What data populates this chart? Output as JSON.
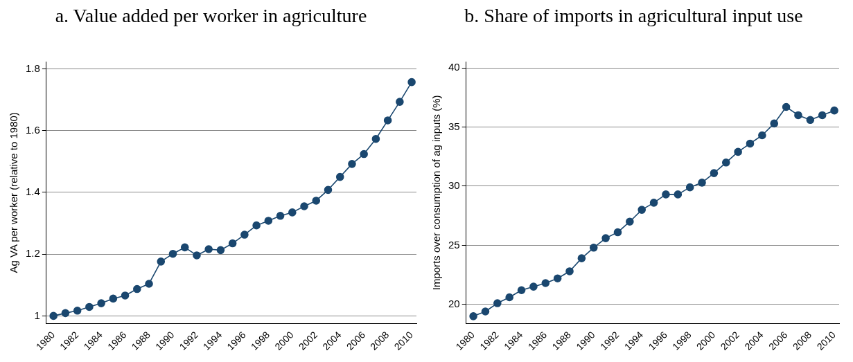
{
  "chart_data": [
    {
      "type": "line",
      "title": "a. Value added per worker in agriculture",
      "ylabel": "Ag VA per worker (relative to 1980)",
      "x": [
        1980,
        1981,
        1982,
        1983,
        1984,
        1985,
        1986,
        1987,
        1988,
        1989,
        1990,
        1991,
        1992,
        1993,
        1994,
        1995,
        1996,
        1997,
        1998,
        1999,
        2000,
        2001,
        2002,
        2003,
        2004,
        2005,
        2006,
        2007,
        2008,
        2009,
        2010
      ],
      "series": [
        {
          "color": "#1a476f",
          "values": [
            1.0,
            1.009,
            1.017,
            1.029,
            1.041,
            1.056,
            1.066,
            1.087,
            1.104,
            1.176,
            1.201,
            1.222,
            1.196,
            1.216,
            1.213,
            1.235,
            1.263,
            1.293,
            1.308,
            1.324,
            1.335,
            1.355,
            1.373,
            1.408,
            1.45,
            1.492,
            1.524,
            1.573,
            1.633,
            1.693,
            1.757
          ]
        }
      ],
      "xlim": [
        1979.4,
        2010.4
      ],
      "xticks": [
        1980,
        1982,
        1984,
        1986,
        1988,
        1990,
        1992,
        1994,
        1996,
        1998,
        2000,
        2002,
        2004,
        2006,
        2008,
        2010
      ],
      "ylim": [
        0.976,
        1.822
      ],
      "yticks": [
        1,
        1.2,
        1.4,
        1.6,
        1.8
      ],
      "grid": "y",
      "marker": "circle",
      "line_style": "solid",
      "legend": false
    },
    {
      "type": "line",
      "title": "b. Share of imports in agricultural input use",
      "ylabel": "Imports over consumption of ag inputs (%)",
      "x": [
        1980,
        1981,
        1982,
        1983,
        1984,
        1985,
        1986,
        1987,
        1988,
        1989,
        1990,
        1991,
        1992,
        1993,
        1994,
        1995,
        1996,
        1997,
        1998,
        1999,
        2000,
        2001,
        2002,
        2003,
        2004,
        2005,
        2006,
        2007,
        2008,
        2009,
        2010
      ],
      "series": [
        {
          "color": "#1a476f",
          "values": [
            19.0,
            19.4,
            20.1,
            20.6,
            21.2,
            21.5,
            21.8,
            22.2,
            22.8,
            23.9,
            24.8,
            25.6,
            26.1,
            27.0,
            28.0,
            28.6,
            29.3,
            29.3,
            29.9,
            30.3,
            31.1,
            32.0,
            32.9,
            33.6,
            34.3,
            35.3,
            36.7,
            36.0,
            35.6,
            36.0,
            36.4
          ]
        }
      ],
      "xlim": [
        1979.4,
        2010.4
      ],
      "xticks": [
        1980,
        1982,
        1984,
        1986,
        1988,
        1990,
        1992,
        1994,
        1996,
        1998,
        2000,
        2002,
        2004,
        2006,
        2008,
        2010
      ],
      "ylim": [
        18.4,
        40.5
      ],
      "yticks": [
        20,
        25,
        30,
        35,
        40
      ],
      "grid": "y",
      "marker": "circle",
      "line_style": "solid",
      "legend": false
    }
  ]
}
